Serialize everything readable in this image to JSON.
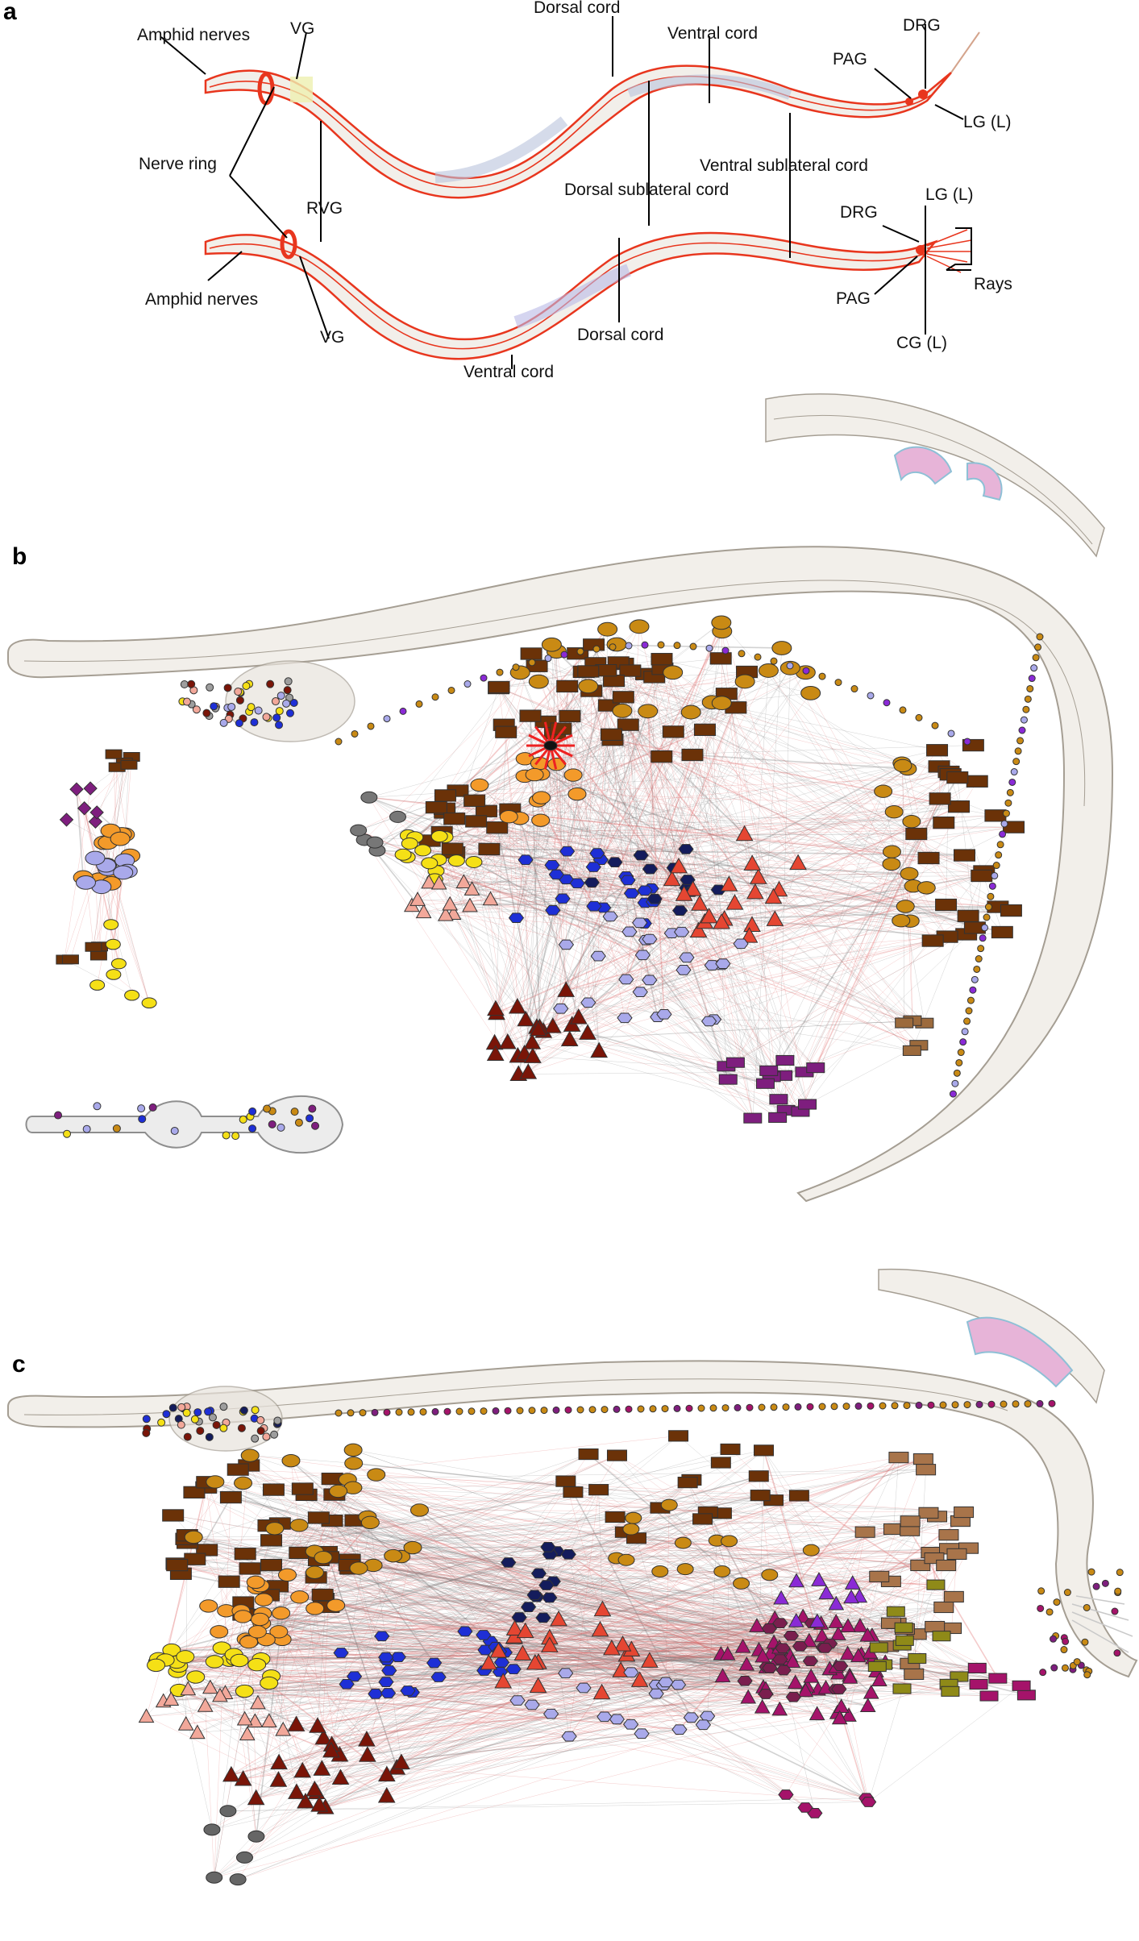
{
  "panels": [
    {
      "id": "a",
      "letter": "a"
    },
    {
      "id": "b",
      "letter": "b"
    },
    {
      "id": "c",
      "letter": "c"
    }
  ],
  "panel_a_labels": {
    "amphid_nerves_top": "Amphid nerves",
    "vg_top": "VG",
    "dorsal_cord_top": "Dorsal cord",
    "ventral_cord_top": "Ventral cord",
    "drg_top": "DRG",
    "pag_top": "PAG",
    "lg_top": "LG (L)",
    "nerve_ring": "Nerve ring",
    "rvg": "RVG",
    "dorsal_sublateral_cord": "Dorsal sublateral cord",
    "ventral_sublateral_cord": "Ventral sublateral cord",
    "drg_bottom": "DRG",
    "lg_bottom": "LG (L)",
    "rays": "Rays",
    "amphid_nerves_bottom": "Amphid nerves",
    "pag_bottom": "PAG",
    "vg_bottom": "VG",
    "dorsal_cord_bottom": "Dorsal cord",
    "cg": "CG (L)",
    "ventral_cord_bottom": "Ventral cord"
  },
  "colors": {
    "nerve_red": "#e8361e",
    "body_fill": "#f2efea",
    "body_outline": "#a59e93",
    "sensory_yellow": "#f5e016",
    "interneuron_blue": "#1e2fd6",
    "navy": "#141c5c",
    "lavender": "#a9a9ea",
    "motor_brown": "#6b3208",
    "ochre": "#c98a14",
    "orange": "#f39a2a",
    "salmon": "#f2a89a",
    "red_triangle": "#e54632",
    "dark_red": "#7a1508",
    "magenta": "#a5136a",
    "purple": "#7e1e7e",
    "violet": "#8a2ad6",
    "olive": "#8f8a18",
    "grey": "#9e9e9e",
    "edge_grey": "#7f7f7f",
    "edge_red": "#e06a6a"
  },
  "node_shape_legend": [
    "triangle",
    "ellipse",
    "hexagon",
    "rectangle",
    "diamond"
  ]
}
